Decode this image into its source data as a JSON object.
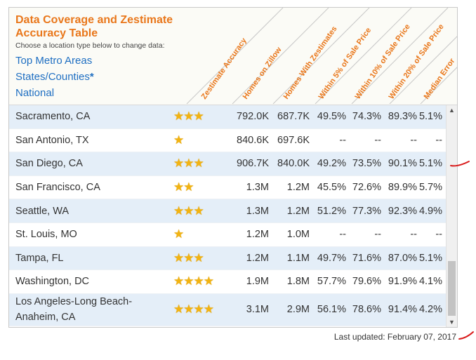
{
  "panel": {
    "title": "Data Coverage and Zestimate Accuracy Table",
    "subtitle": "Choose a location type below to change data:",
    "location_types": [
      "Top Metro Areas",
      "States/Counties",
      "National"
    ],
    "states_marker": "*",
    "columns": [
      "Zestimate Accuracy",
      "Homes on Zillow",
      "Homes With Zestimates",
      "Within 5% of Sale Price",
      "Within 10% of Sale Price",
      "Within 20% of Sale Price",
      "Median Error"
    ],
    "rows": [
      {
        "name": "Sacramento, CA",
        "stars": 3,
        "homes_on_zillow": "792.0K",
        "homes_with_zestimates": "687.7K",
        "within_5": "49.5%",
        "within_10": "74.3%",
        "within_20": "89.3%",
        "median_error": "5.1%"
      },
      {
        "name": "San Antonio, TX",
        "stars": 1,
        "homes_on_zillow": "840.6K",
        "homes_with_zestimates": "697.6K",
        "within_5": "--",
        "within_10": "--",
        "within_20": "--",
        "median_error": "--"
      },
      {
        "name": "San Diego, CA",
        "stars": 3,
        "homes_on_zillow": "906.7K",
        "homes_with_zestimates": "840.0K",
        "within_5": "49.2%",
        "within_10": "73.5%",
        "within_20": "90.1%",
        "median_error": "5.1%"
      },
      {
        "name": "San Francisco, CA",
        "stars": 2,
        "homes_on_zillow": "1.3M",
        "homes_with_zestimates": "1.2M",
        "within_5": "45.5%",
        "within_10": "72.6%",
        "within_20": "89.9%",
        "median_error": "5.7%"
      },
      {
        "name": "Seattle, WA",
        "stars": 3,
        "homes_on_zillow": "1.3M",
        "homes_with_zestimates": "1.2M",
        "within_5": "51.2%",
        "within_10": "77.3%",
        "within_20": "92.3%",
        "median_error": "4.9%"
      },
      {
        "name": "St. Louis, MO",
        "stars": 1,
        "homes_on_zillow": "1.2M",
        "homes_with_zestimates": "1.0M",
        "within_5": "--",
        "within_10": "--",
        "within_20": "--",
        "median_error": "--"
      },
      {
        "name": "Tampa, FL",
        "stars": 3,
        "homes_on_zillow": "1.2M",
        "homes_with_zestimates": "1.1M",
        "within_5": "49.7%",
        "within_10": "71.6%",
        "within_20": "87.0%",
        "median_error": "5.1%"
      },
      {
        "name": "Washington, DC",
        "stars": 4,
        "homes_on_zillow": "1.9M",
        "homes_with_zestimates": "1.8M",
        "within_5": "57.7%",
        "within_10": "79.6%",
        "within_20": "91.9%",
        "median_error": "4.1%"
      },
      {
        "name": "Los Angeles-Long Beach-Anaheim, CA",
        "stars": 4,
        "homes_on_zillow": "3.1M",
        "homes_with_zestimates": "2.9M",
        "within_5": "56.1%",
        "within_10": "78.6%",
        "within_20": "91.4%",
        "median_error": "4.2%"
      }
    ],
    "scroll_up_icon": "▲",
    "scroll_down_icon": "▼"
  },
  "footer": {
    "last_updated": "Last updated: February 07, 2017"
  },
  "colors": {
    "title": "#e9771b",
    "link": "#1f6fc2",
    "row_alt": "#e4eef8",
    "star": "#f2b311",
    "annotation": "#d91c1c"
  }
}
